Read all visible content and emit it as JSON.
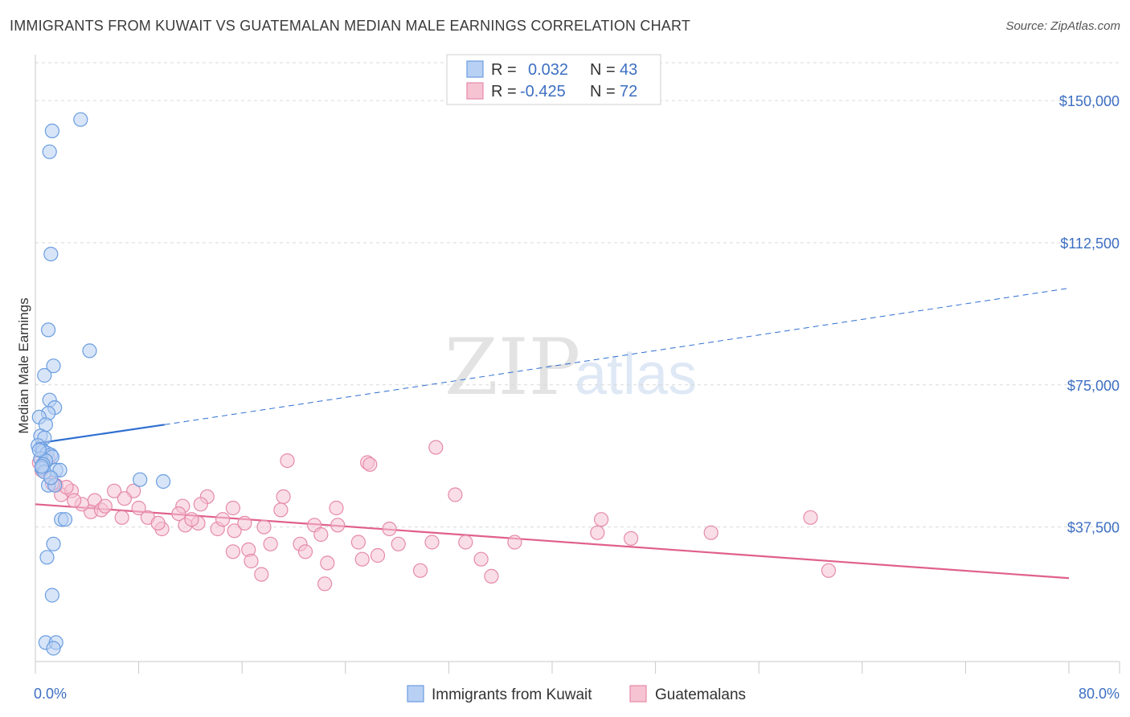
{
  "title": "IMMIGRANTS FROM KUWAIT VS GUATEMALAN MEDIAN MALE EARNINGS CORRELATION CHART",
  "source": "Source: ZipAtlas.com",
  "watermark": {
    "zip": "ZIP",
    "atlas": "atlas"
  },
  "colors": {
    "blue": "#6a9de0",
    "blue_fill": "#b8d0f3",
    "blue_line": "#2f6fd0",
    "pink": "#e58aa8",
    "pink_fill": "#f6c3d3",
    "pink_line": "#e0608c",
    "grid": "#d9d9d9",
    "tick_text": "#3d6fc2"
  },
  "legend": {
    "series1": {
      "r_label": "R =",
      "r_value": "0.032",
      "n_label": "N =",
      "n_value": "43"
    },
    "series2": {
      "r_label": "R =",
      "r_value": "-0.425",
      "n_label": "N =",
      "n_value": "72"
    }
  },
  "chart_data": {
    "type": "scatter",
    "title": "IMMIGRANTS FROM KUWAIT VS GUATEMALAN MEDIAN MALE EARNINGS CORRELATION CHART",
    "xlabel": "",
    "ylabel": "Median Male Earnings",
    "xlim": [
      0,
      80
    ],
    "ylim": [
      2000,
      160000
    ],
    "x_tick_labels": [
      "0.0%",
      "80.0%"
    ],
    "y_ticks": [
      37500,
      75000,
      112500,
      150000
    ],
    "y_tick_labels": [
      "$37,500",
      "$75,000",
      "$112,500",
      "$150,000"
    ],
    "grid": true,
    "series": [
      {
        "name": "Immigrants from Kuwait",
        "color": "#6a9de0",
        "points": [
          [
            3.5,
            145000
          ],
          [
            1.3,
            142000
          ],
          [
            1.1,
            136500
          ],
          [
            1.2,
            109500
          ],
          [
            1.0,
            89500
          ],
          [
            4.2,
            84000
          ],
          [
            1.4,
            80000
          ],
          [
            0.7,
            77500
          ],
          [
            1.1,
            71000
          ],
          [
            1.5,
            69000
          ],
          [
            1.0,
            67500
          ],
          [
            0.3,
            66500
          ],
          [
            0.8,
            64500
          ],
          [
            0.4,
            61500
          ],
          [
            0.7,
            61000
          ],
          [
            0.2,
            59000
          ],
          [
            0.5,
            58000
          ],
          [
            0.6,
            57500
          ],
          [
            0.9,
            57000
          ],
          [
            1.2,
            56500
          ],
          [
            1.3,
            56000
          ],
          [
            0.4,
            55500
          ],
          [
            0.8,
            55000
          ],
          [
            0.6,
            54000
          ],
          [
            0.5,
            53000
          ],
          [
            1.6,
            52500
          ],
          [
            1.9,
            52500
          ],
          [
            0.7,
            52000
          ],
          [
            8.1,
            50000
          ],
          [
            9.9,
            49500
          ],
          [
            1.0,
            48500
          ],
          [
            1.5,
            48500
          ],
          [
            2.0,
            39500
          ],
          [
            2.3,
            39500
          ],
          [
            1.4,
            33000
          ],
          [
            0.9,
            29500
          ],
          [
            1.3,
            19500
          ],
          [
            0.8,
            7000
          ],
          [
            1.6,
            7000
          ],
          [
            1.4,
            5500
          ],
          [
            1.2,
            50500
          ],
          [
            0.3,
            57800
          ],
          [
            0.5,
            53500
          ]
        ]
      },
      {
        "name": "Guatemalans",
        "color": "#e58aa8",
        "points": [
          [
            31.0,
            58500
          ],
          [
            19.5,
            55000
          ],
          [
            25.7,
            54500
          ],
          [
            25.9,
            54000
          ],
          [
            1.0,
            55500
          ],
          [
            0.5,
            52500
          ],
          [
            1.6,
            48500
          ],
          [
            2.0,
            46000
          ],
          [
            2.8,
            47000
          ],
          [
            4.6,
            44500
          ],
          [
            4.3,
            41500
          ],
          [
            5.1,
            42000
          ],
          [
            6.1,
            47000
          ],
          [
            7.6,
            47000
          ],
          [
            6.9,
            45000
          ],
          [
            5.4,
            43000
          ],
          [
            3.6,
            43500
          ],
          [
            3.0,
            44500
          ],
          [
            8.0,
            42500
          ],
          [
            11.4,
            43000
          ],
          [
            13.3,
            45500
          ],
          [
            12.8,
            43500
          ],
          [
            15.3,
            42500
          ],
          [
            19.0,
            42000
          ],
          [
            19.2,
            45500
          ],
          [
            23.3,
            42500
          ],
          [
            21.6,
            38000
          ],
          [
            32.5,
            46000
          ],
          [
            8.7,
            40000
          ],
          [
            6.7,
            40000
          ],
          [
            9.8,
            37000
          ],
          [
            12.6,
            38500
          ],
          [
            11.1,
            41000
          ],
          [
            11.6,
            38000
          ],
          [
            12.1,
            39500
          ],
          [
            14.1,
            37000
          ],
          [
            15.4,
            36500
          ],
          [
            14.5,
            39500
          ],
          [
            16.2,
            38500
          ],
          [
            17.7,
            37500
          ],
          [
            20.5,
            33000
          ],
          [
            22.1,
            35500
          ],
          [
            23.4,
            38000
          ],
          [
            25.0,
            33500
          ],
          [
            27.4,
            37000
          ],
          [
            28.1,
            33000
          ],
          [
            30.7,
            33500
          ],
          [
            33.3,
            33500
          ],
          [
            37.1,
            33500
          ],
          [
            43.5,
            36000
          ],
          [
            43.8,
            39500
          ],
          [
            46.1,
            34500
          ],
          [
            52.3,
            36000
          ],
          [
            60.0,
            40000
          ],
          [
            61.4,
            26000
          ],
          [
            15.3,
            31000
          ],
          [
            16.5,
            31500
          ],
          [
            16.7,
            28500
          ],
          [
            17.5,
            25000
          ],
          [
            20.9,
            31000
          ],
          [
            22.6,
            28000
          ],
          [
            22.4,
            22500
          ],
          [
            25.3,
            29000
          ],
          [
            26.5,
            30000
          ],
          [
            29.8,
            26000
          ],
          [
            34.5,
            29000
          ],
          [
            35.3,
            24500
          ],
          [
            1.3,
            49000
          ],
          [
            0.3,
            54500
          ],
          [
            2.4,
            48000
          ],
          [
            9.5,
            38500
          ],
          [
            18.2,
            33000
          ]
        ]
      }
    ],
    "trend_lines": [
      {
        "series": "Immigrants from Kuwait",
        "solid": [
          [
            0,
            59500
          ],
          [
            10,
            64500
          ]
        ],
        "dashed": [
          [
            10,
            64500
          ],
          [
            80,
            100500
          ]
        ]
      },
      {
        "series": "Guatemalans",
        "solid": [
          [
            0,
            43500
          ],
          [
            80,
            24000
          ]
        ]
      }
    ]
  },
  "bottom_legend": [
    "Immigrants from Kuwait",
    "Guatemalans"
  ]
}
